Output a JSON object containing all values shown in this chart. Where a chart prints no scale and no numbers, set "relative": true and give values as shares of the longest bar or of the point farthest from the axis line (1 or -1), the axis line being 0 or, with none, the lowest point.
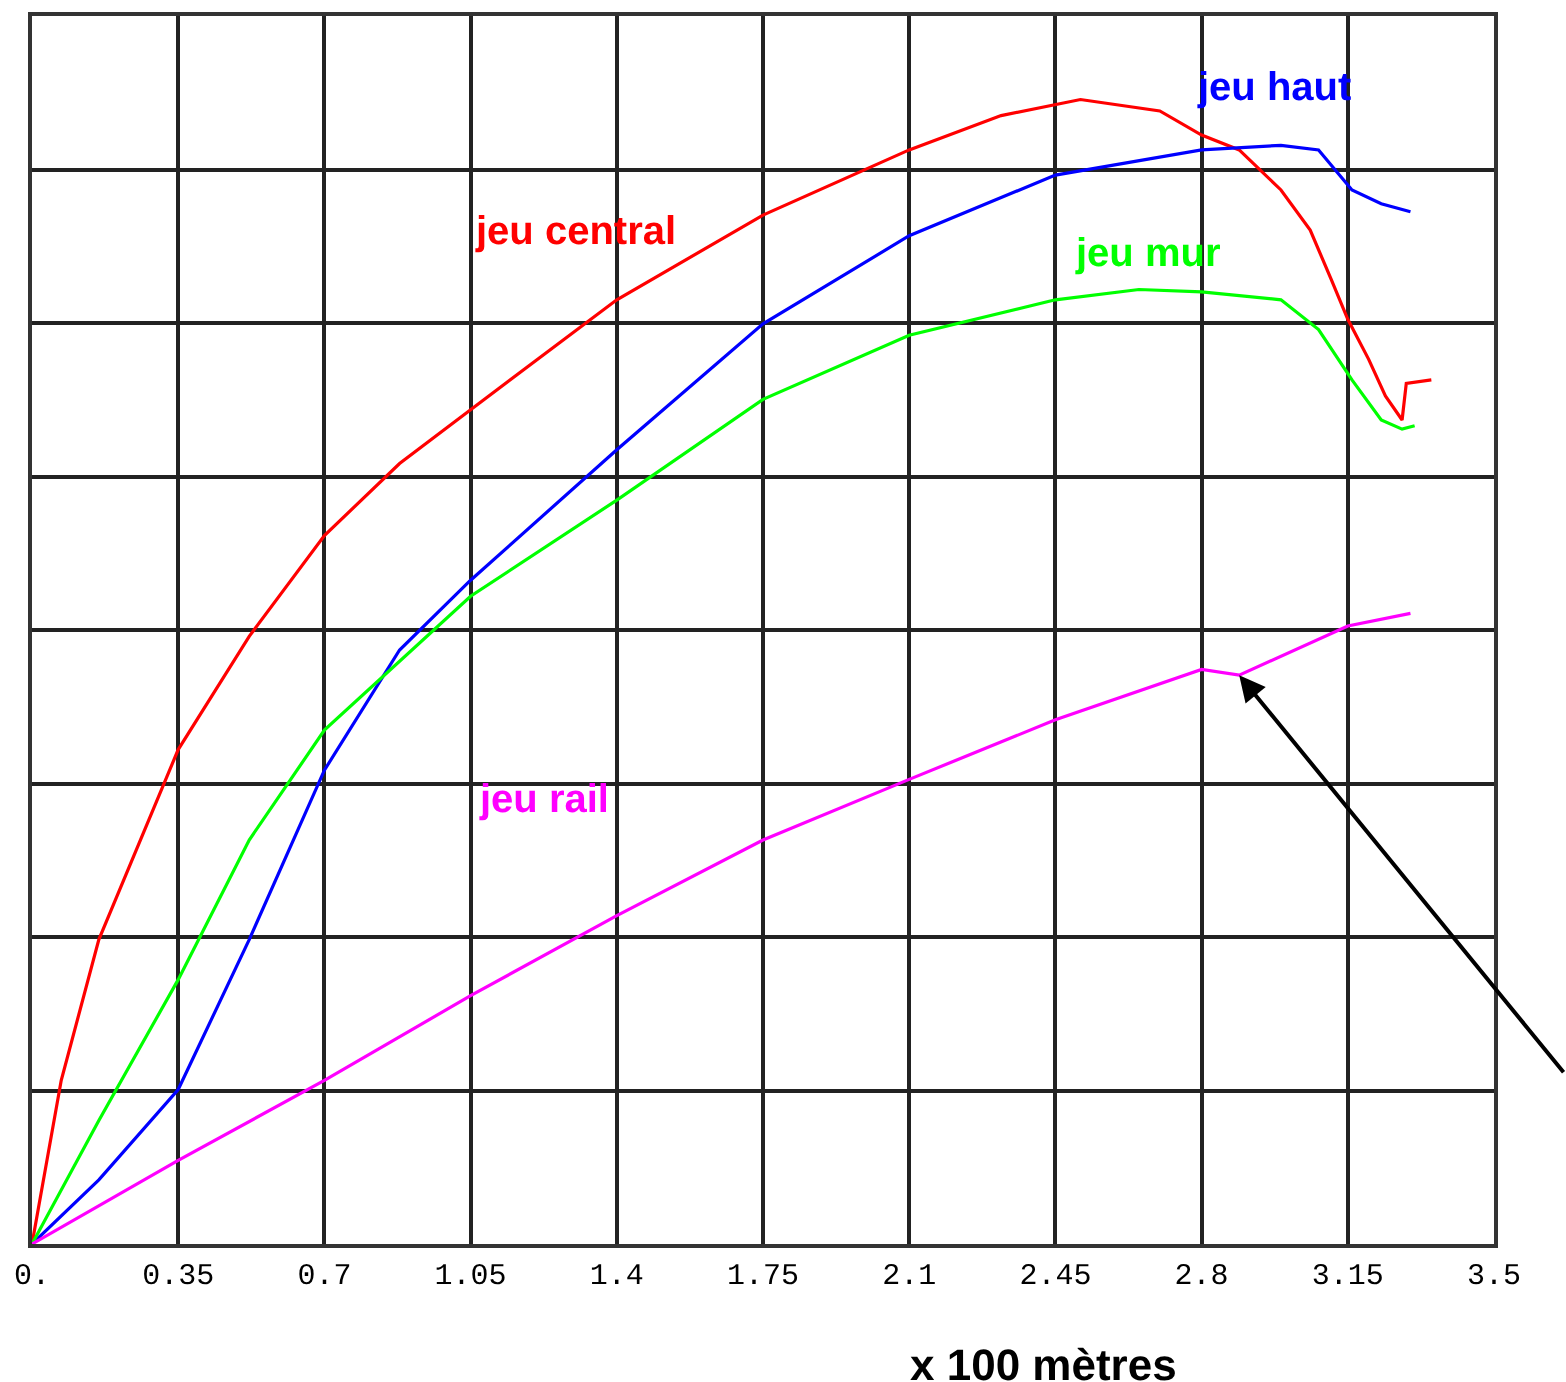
{
  "chart_data": {
    "type": "line",
    "relative": true,
    "xlabel": "x 100 mètres",
    "xlim": [
      0,
      3.5
    ],
    "xticks": [
      {
        "value": 0,
        "label": "0."
      },
      0.35,
      0.7,
      1.05,
      1.4,
      1.75,
      2.1,
      2.45,
      2.8,
      3.15,
      3.5
    ],
    "grid": true,
    "legend": false,
    "marker": "none",
    "line_style": "solid",
    "series": [
      {
        "name": "jeu central",
        "color": "#ff0000",
        "x": [
          0,
          0.07,
          0.16,
          0.35,
          0.52,
          0.7,
          0.88,
          1.05,
          1.4,
          1.75,
          2.1,
          2.32,
          2.51,
          2.7,
          2.8,
          2.89,
          2.99,
          3.06,
          3.11,
          3.15,
          3.2,
          3.24,
          3.28,
          3.29,
          3.35
        ],
        "values": [
          0,
          0.143,
          0.266,
          0.432,
          0.531,
          0.619,
          0.682,
          0.729,
          0.825,
          0.899,
          0.956,
          0.986,
          1.0,
          0.99,
          0.969,
          0.956,
          0.921,
          0.886,
          0.843,
          0.808,
          0.773,
          0.741,
          0.72,
          0.752,
          0.755
        ]
      },
      {
        "name": "jeu haut",
        "color": "#0000ff",
        "x": [
          0,
          0.16,
          0.35,
          0.52,
          0.7,
          0.88,
          1.05,
          1.4,
          1.75,
          2.1,
          2.45,
          2.8,
          2.99,
          3.08,
          3.16,
          3.23,
          3.3
        ],
        "values": [
          0,
          0.056,
          0.135,
          0.266,
          0.414,
          0.519,
          0.58,
          0.694,
          0.804,
          0.881,
          0.934,
          0.956,
          0.96,
          0.956,
          0.921,
          0.909,
          0.902
        ]
      },
      {
        "name": "jeu mur",
        "color": "#00ff00",
        "x": [
          0,
          0.16,
          0.35,
          0.52,
          0.7,
          1.05,
          1.4,
          1.75,
          2.1,
          2.45,
          2.65,
          2.8,
          2.99,
          3.08,
          3.16,
          3.23,
          3.28,
          3.31
        ],
        "values": [
          0,
          0.108,
          0.231,
          0.353,
          0.449,
          0.566,
          0.65,
          0.738,
          0.794,
          0.825,
          0.834,
          0.832,
          0.825,
          0.799,
          0.755,
          0.72,
          0.712,
          0.715
        ]
      },
      {
        "name": "jeu rail",
        "color": "#ff00ff",
        "x": [
          0,
          0.35,
          0.7,
          1.05,
          1.4,
          1.75,
          2.1,
          2.45,
          2.8,
          2.89,
          3.15,
          3.3
        ],
        "values": [
          0,
          0.073,
          0.143,
          0.217,
          0.287,
          0.353,
          0.406,
          0.458,
          0.502,
          0.497,
          0.54,
          0.551
        ]
      }
    ]
  }
}
